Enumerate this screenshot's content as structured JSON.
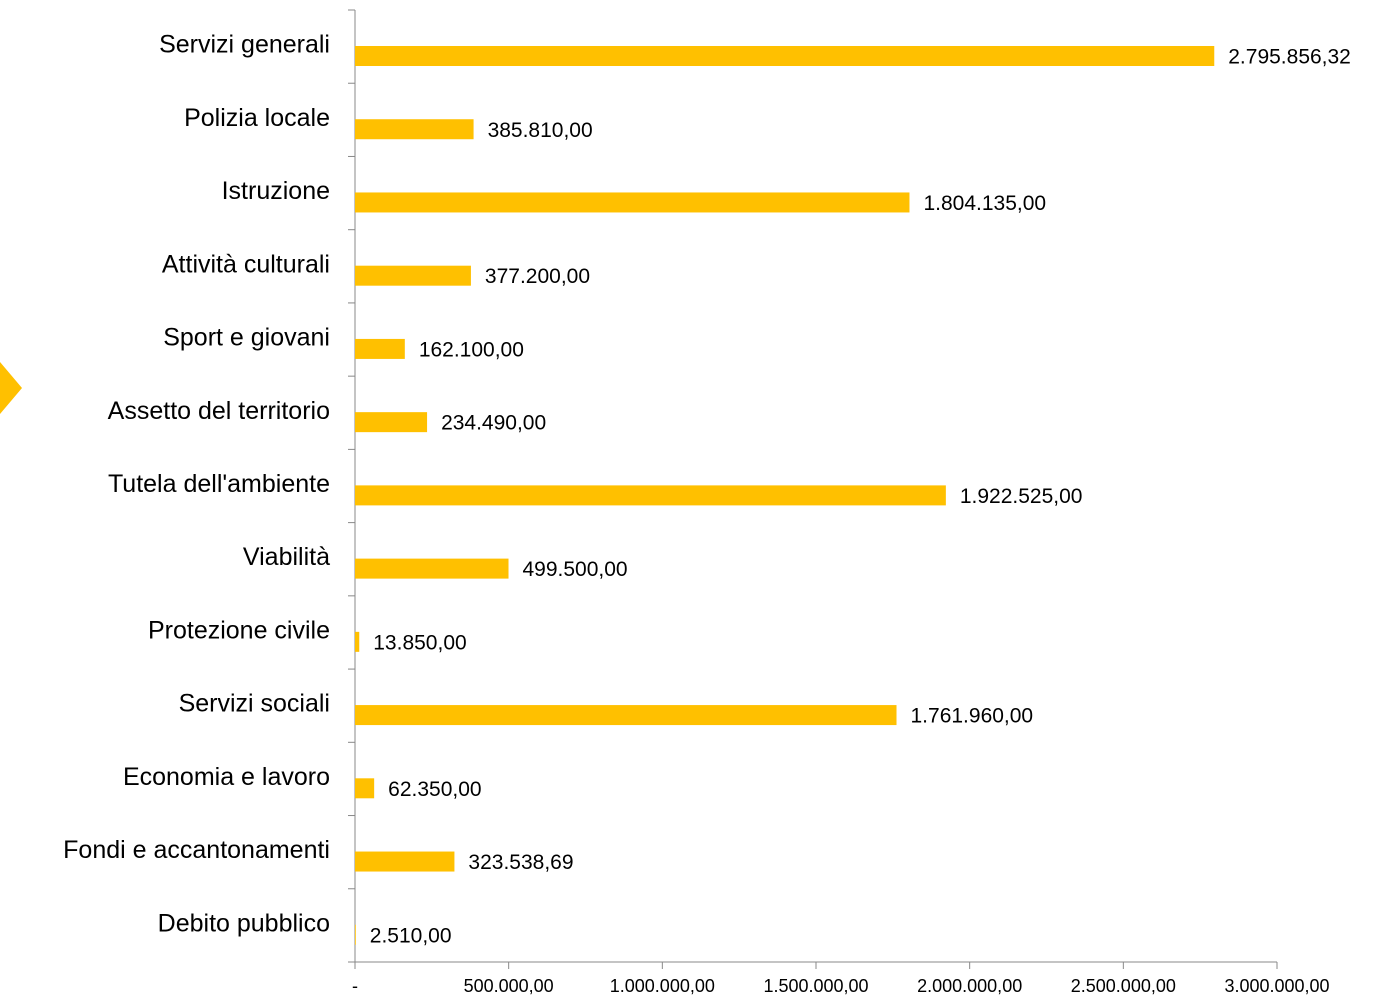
{
  "chart_data": {
    "type": "bar",
    "orientation": "horizontal",
    "categories": [
      "Servizi generali",
      "Polizia locale",
      "Istruzione",
      "Attività culturali",
      "Sport e giovani",
      "Assetto del territorio",
      "Tutela dell'ambiente",
      "Viabilità",
      "Protezione civile",
      "Servizi sociali",
      "Economia e lavoro",
      "Fondi e accantonamenti",
      "Debito pubblico"
    ],
    "values": [
      2795856.32,
      385810,
      1804135,
      377200,
      162100,
      234490,
      1922525,
      499500,
      13850,
      1761960,
      62350,
      323538.69,
      2510
    ],
    "value_labels": [
      "2.795.856,32",
      "385.810,00",
      "1.804.135,00",
      "377.200,00",
      "162.100,00",
      "234.490,00",
      "1.922.525,00",
      "499.500,00",
      "13.850,00",
      "1.761.960,00",
      "62.350,00",
      "323.538,69",
      "2.510,00"
    ],
    "color": "#ffc000",
    "xlim": [
      0,
      3000000
    ],
    "xticks": [
      {
        "value": 0,
        "label": "-"
      },
      {
        "value": 500000,
        "label": "500.000,00"
      },
      {
        "value": 1000000,
        "label": "1.000.000,00"
      },
      {
        "value": 1500000,
        "label": "1.500.000,00"
      },
      {
        "value": 2000000,
        "label": "2.000.000,00"
      },
      {
        "value": 2500000,
        "label": "2.500.000,00"
      },
      {
        "value": 3000000,
        "label": "3.000.000,00"
      }
    ]
  }
}
